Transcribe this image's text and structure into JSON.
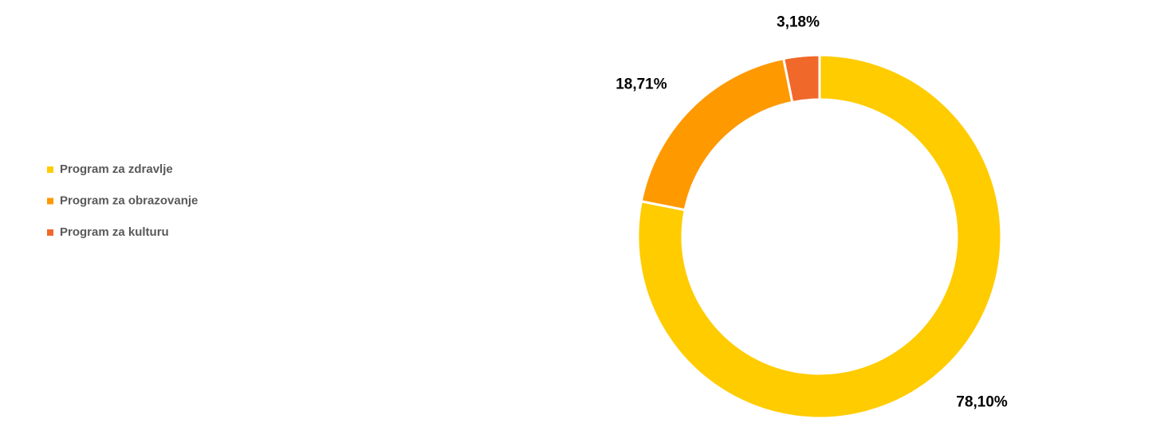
{
  "chart_data": {
    "type": "donut",
    "categories": [
      "Program za zdravlje",
      "Program za obrazovanje",
      "Program za kulturu"
    ],
    "values": [
      78.1,
      18.71,
      3.18
    ],
    "value_labels": [
      "78,10%",
      "18,71%",
      "3,18%"
    ],
    "colors": [
      "#ffcc00",
      "#ff9900",
      "#f0682a"
    ],
    "legend": "left"
  }
}
